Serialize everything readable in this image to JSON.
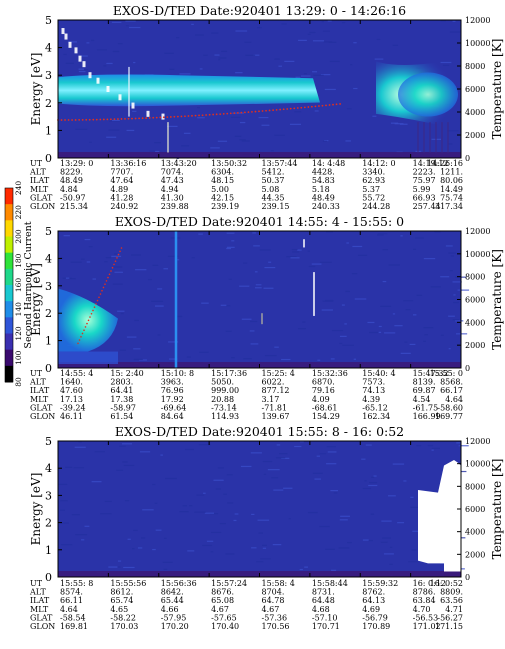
{
  "chart_data": {
    "type": "heatmap",
    "colorbar": {
      "label": "Second Harmonic Current",
      "ticks": [
        "80",
        "100",
        "120",
        "140",
        "160",
        "180",
        "200",
        "220",
        "240"
      ],
      "colors": [
        "#000000",
        "#3a0a6e",
        "#3a2fb0",
        "#2f55d8",
        "#1f8de8",
        "#19c8d0",
        "#1fd88a",
        "#2ee33a",
        "#bff000",
        "#ffd800",
        "#ff8a00",
        "#ff2a00"
      ]
    },
    "row_labels": [
      "UT",
      "ALT",
      "ILAT",
      "MLT",
      "GLAT",
      "GLON"
    ],
    "panels": [
      {
        "title": "EXOS-D/TED   Date:920401  13:29: 0 - 14:26:16",
        "ylabel": "Energy [eV]",
        "y2label": "Temperature [K]",
        "ylim": [
          0,
          5
        ],
        "y2lim": [
          0,
          12000
        ],
        "yticks": [
          "0",
          "1",
          "2",
          "3",
          "4",
          "5"
        ],
        "y2ticks": [
          "0",
          "2000",
          "4000",
          "6000",
          "8000",
          "10000",
          "12000"
        ],
        "columns": [
          [
            "13:29: 0",
            "8229.",
            "48.49",
            "4.84",
            "-50.97",
            "215.34"
          ],
          [
            "13:36:16",
            "7707.",
            "47.64",
            "4.89",
            "41.28",
            "240.92"
          ],
          [
            "13:43:20",
            "7074.",
            "47.43",
            "4.94",
            "41.30",
            "239.88"
          ],
          [
            "13:50:32",
            "6304.",
            "48.15",
            "5.00",
            "42.15",
            "239.19"
          ],
          [
            "13:57:44",
            "5412.",
            "50.37",
            "5.08",
            "44.35",
            "239.15"
          ],
          [
            "14: 4:48",
            "4428.",
            "54.83",
            "5.18",
            "48.49",
            "240.33"
          ],
          [
            "14:12: 0",
            "3340.",
            "62.93",
            "5.37",
            "55.72",
            "244.28"
          ],
          [
            "14:19:12",
            "2223.",
            "75.97",
            "5.99",
            "66.93",
            "257.44"
          ],
          [
            "14:26:16",
            "1211.",
            "80.06",
            "14.49",
            "75.74",
            "317.34"
          ]
        ]
      },
      {
        "title": "EXOS-D/TED   Date:920401  14:55: 4 - 15:55: 0",
        "ylabel": "Energy [eV]",
        "y2label": "Temperature [K]",
        "ylim": [
          0,
          5
        ],
        "y2lim": [
          0,
          12000
        ],
        "yticks": [
          "0",
          "1",
          "2",
          "3",
          "4",
          "5"
        ],
        "y2ticks": [
          "0",
          "2000",
          "4000",
          "6000",
          "8000",
          "10000",
          "12000"
        ],
        "columns": [
          [
            "14:55: 4",
            "1640.",
            "47.60",
            "17.13",
            "-39.24",
            "46.11"
          ],
          [
            "15: 2:40",
            "2803.",
            "64.41",
            "17.38",
            "-58.97",
            "61.54"
          ],
          [
            "15:10: 8",
            "3963.",
            "76.96",
            "17.92",
            "-69.64",
            "84.64"
          ],
          [
            "15:17:36",
            "5050.",
            "999.00",
            "20.88",
            "-73.14",
            "114.93"
          ],
          [
            "15:25: 4",
            "6022.",
            "877.12",
            "3.17",
            "-71.81",
            "139.67"
          ],
          [
            "15:32:36",
            "6870.",
            "79.16",
            "4.09",
            "-68.61",
            "154.29"
          ],
          [
            "15:40: 4",
            "7573.",
            "74.13",
            "4.39",
            "-65.12",
            "162.34"
          ],
          [
            "15:47:32",
            "8139.",
            "69.87",
            "4.54",
            "-61.75",
            "166.99"
          ],
          [
            "15:55: 0",
            "8568.",
            "66.17",
            "4.64",
            "-58.60",
            "169.77"
          ]
        ]
      },
      {
        "title": "EXOS-D/TED   Date:920401  15:55: 8 - 16: 0:52",
        "ylabel": "Energy [eV]",
        "y2label": "Temperature [K]",
        "ylim": [
          0,
          5
        ],
        "y2lim": [
          0,
          12000
        ],
        "yticks": [
          "0",
          "1",
          "2",
          "3",
          "4",
          "5"
        ],
        "y2ticks": [
          "0",
          "2000",
          "4000",
          "6000",
          "8000",
          "10000",
          "12000"
        ],
        "columns": [
          [
            "15:55: 8",
            "8574.",
            "66.11",
            "4.64",
            "-58.54",
            "169.81"
          ],
          [
            "15:55:56",
            "8612.",
            "65.74",
            "4.65",
            "-58.22",
            "170.03"
          ],
          [
            "15:56:36",
            "8642.",
            "65.44",
            "4.66",
            "-57.95",
            "170.20"
          ],
          [
            "15:57:24",
            "8676.",
            "65.08",
            "4.67",
            "-57.65",
            "170.40"
          ],
          [
            "15:58: 4",
            "8704.",
            "64.78",
            "4.67",
            "-57.36",
            "170.56"
          ],
          [
            "15:58:44",
            "8731.",
            "64.48",
            "4.68",
            "-57.10",
            "170.71"
          ],
          [
            "15:59:32",
            "8762.",
            "64.13",
            "4.69",
            "-56.79",
            "170.89"
          ],
          [
            "16: 0:12",
            "8786.",
            "63.84",
            "4.70",
            "-56.53",
            "171.02"
          ],
          [
            "16: 0:52",
            "8809.",
            "63.56",
            "4.71",
            "-56.27",
            "171.15"
          ]
        ]
      }
    ]
  }
}
